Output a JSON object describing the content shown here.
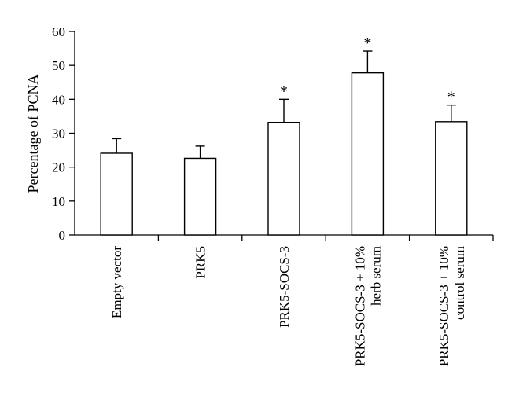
{
  "chart_data": {
    "type": "bar",
    "title": "",
    "xlabel": "",
    "ylabel": "Percentage of PCNA",
    "ylim": [
      0,
      60
    ],
    "yticks": [
      0,
      10,
      20,
      30,
      40,
      50,
      60
    ],
    "categories": [
      [
        "Empty vector"
      ],
      [
        "PRK5"
      ],
      [
        "PRK5-SOCS-3"
      ],
      [
        "PRK5-SOCS-3 + 10%",
        "herb serum"
      ],
      [
        "PRK5-SOCS-3 + 10%",
        "control serum"
      ]
    ],
    "values": [
      24.1,
      22.6,
      33.2,
      47.8,
      33.4
    ],
    "errors": [
      4.3,
      3.6,
      6.8,
      6.4,
      4.9
    ],
    "significance": [
      "",
      "",
      "*",
      "*",
      "*"
    ],
    "bar_color": "#ffffff",
    "edge_color": "#000000",
    "grid": false
  }
}
